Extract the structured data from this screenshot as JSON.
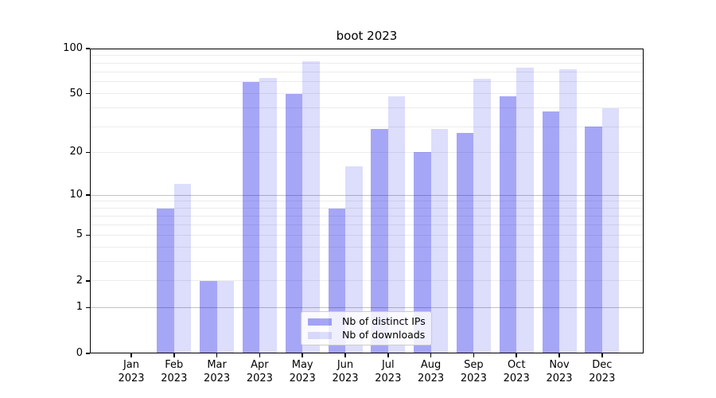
{
  "chart_data": {
    "type": "bar",
    "title": "boot 2023",
    "categories": [
      "Jan 2023",
      "Feb 2023",
      "Mar 2023",
      "Apr 2023",
      "May 2023",
      "Jun 2023",
      "Jul 2023",
      "Aug 2023",
      "Sep 2023",
      "Oct 2023",
      "Nov 2023",
      "Dec 2023"
    ],
    "series": [
      {
        "name": "Nb of distinct IPs",
        "color": "#0000e6",
        "alpha": 0.35,
        "values": [
          0,
          8,
          2,
          60,
          50,
          8,
          29,
          20,
          27,
          48,
          38,
          30
        ]
      },
      {
        "name": "Nb of downloads",
        "color": "#0000e6",
        "alpha": 0.135,
        "values": [
          0,
          12,
          2,
          64,
          82,
          16,
          48,
          29,
          63,
          75,
          73,
          40
        ]
      }
    ],
    "xlabel": "",
    "ylabel": "",
    "yscale": "log1p",
    "ylim": [
      0,
      100
    ],
    "ytick_values": [
      0,
      1,
      2,
      5,
      10,
      20,
      50,
      100
    ],
    "grid": "horizontal",
    "legend_position": "lower center"
  },
  "colors": {
    "background": "#ffffff",
    "text": "#000000",
    "spine": "#000000",
    "grid_minor": "#ececec",
    "grid_major": "#c2c2c2",
    "legend_border": "#cccccc"
  }
}
